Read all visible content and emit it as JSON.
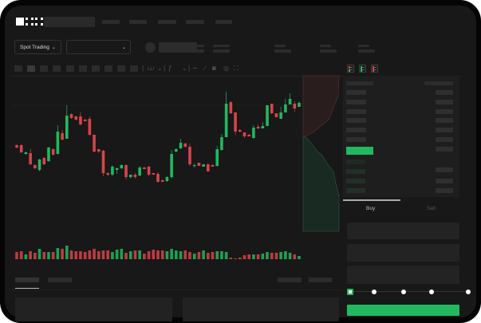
{
  "header": {
    "logo": "OKX",
    "market_selector": {
      "label": "Spot Trading",
      "icon": "chevron-down-icon"
    },
    "pair_selector": {
      "icon": "chevron-down-icon"
    }
  },
  "order_form": {
    "tabs": [
      {
        "label": "Buy",
        "active": true
      },
      {
        "label": "Sell",
        "active": false
      }
    ],
    "slider_percent": 0
  },
  "colors": {
    "background": "#181818",
    "up": "#22b85f",
    "down": "#d9434a",
    "accent": "#22b85f"
  },
  "chart_data": {
    "type": "candlestick",
    "title": "",
    "xlabel": "",
    "ylabel": "",
    "grid": true,
    "candles": [
      [
        118,
        115,
        119,
        114
      ],
      [
        118,
        109,
        119,
        108
      ],
      [
        107,
        109,
        110,
        106
      ],
      [
        108,
        94,
        113,
        93
      ],
      [
        93,
        89,
        94,
        88
      ],
      [
        87,
        100,
        101,
        85
      ],
      [
        102,
        94,
        103,
        93
      ],
      [
        98,
        115,
        116,
        97
      ],
      [
        113,
        106,
        114,
        105
      ],
      [
        107,
        135,
        143,
        106
      ],
      [
        133,
        125,
        137,
        124
      ],
      [
        126,
        155,
        168,
        126
      ],
      [
        157,
        152,
        158,
        151
      ],
      [
        154,
        150,
        155,
        149
      ],
      [
        154,
        144,
        159,
        143
      ],
      [
        150,
        148,
        151,
        148
      ],
      [
        151,
        131,
        154,
        130
      ],
      [
        131,
        110,
        131,
        109
      ],
      [
        113,
        110,
        113,
        108
      ],
      [
        111,
        83,
        112,
        79
      ],
      [
        83,
        81,
        84,
        79
      ],
      [
        81,
        91,
        93,
        79
      ],
      [
        87,
        89,
        90,
        82
      ],
      [
        89,
        93,
        94,
        88
      ],
      [
        93,
        78,
        94,
        75
      ],
      [
        78,
        81,
        81,
        76
      ],
      [
        81,
        78,
        83,
        76
      ],
      [
        80,
        90,
        92,
        79
      ],
      [
        90,
        88,
        91,
        88
      ],
      [
        91,
        81,
        92,
        79
      ],
      [
        83,
        81,
        83,
        81
      ],
      [
        82,
        72,
        84,
        71
      ],
      [
        74,
        72,
        75,
        72
      ],
      [
        73,
        78,
        79,
        72
      ],
      [
        78,
        107,
        112,
        76
      ],
      [
        110,
        113,
        114,
        109
      ],
      [
        114,
        121,
        126,
        113
      ],
      [
        120,
        116,
        121,
        115
      ],
      [
        116,
        94,
        120,
        92
      ],
      [
        92,
        93,
        95,
        90
      ],
      [
        96,
        92,
        96,
        92
      ],
      [
        91,
        94,
        94,
        91
      ],
      [
        94,
        85,
        95,
        85
      ],
      [
        93,
        91,
        94,
        91
      ],
      [
        92,
        113,
        117,
        91
      ],
      [
        112,
        128,
        132,
        111
      ],
      [
        128,
        170,
        185,
        128
      ],
      [
        172,
        158,
        173,
        157
      ],
      [
        159,
        135,
        159,
        131
      ],
      [
        137,
        135,
        138,
        134
      ],
      [
        134,
        129,
        134,
        127
      ],
      [
        131,
        129,
        132,
        129
      ],
      [
        127,
        140,
        143,
        126
      ],
      [
        141,
        139,
        144,
        138
      ],
      [
        139,
        142,
        147,
        139
      ],
      [
        142,
        168,
        168,
        142
      ],
      [
        170,
        158,
        170,
        157
      ],
      [
        158,
        153,
        158,
        153
      ],
      [
        151,
        159,
        166,
        151
      ],
      [
        159,
        169,
        176,
        159
      ],
      [
        169,
        176,
        183,
        169
      ],
      [
        170,
        164,
        173,
        160
      ],
      [
        166,
        171,
        173,
        166
      ]
    ],
    "candle_format": [
      "open",
      "close",
      "high",
      "low"
    ],
    "volume": [
      9,
      10,
      6,
      10,
      8,
      13,
      9,
      9,
      9,
      14,
      13,
      17,
      11,
      10,
      10,
      9,
      11,
      13,
      10,
      11,
      11,
      9,
      12,
      13,
      8,
      10,
      11,
      11,
      7,
      10,
      12,
      11,
      11,
      10,
      13,
      11,
      10,
      11,
      9,
      7,
      9,
      11,
      8,
      9,
      10,
      10,
      9,
      2,
      1,
      2,
      5,
      6,
      6,
      6,
      7,
      9,
      8,
      8,
      9,
      10,
      8,
      6,
      4
    ]
  }
}
